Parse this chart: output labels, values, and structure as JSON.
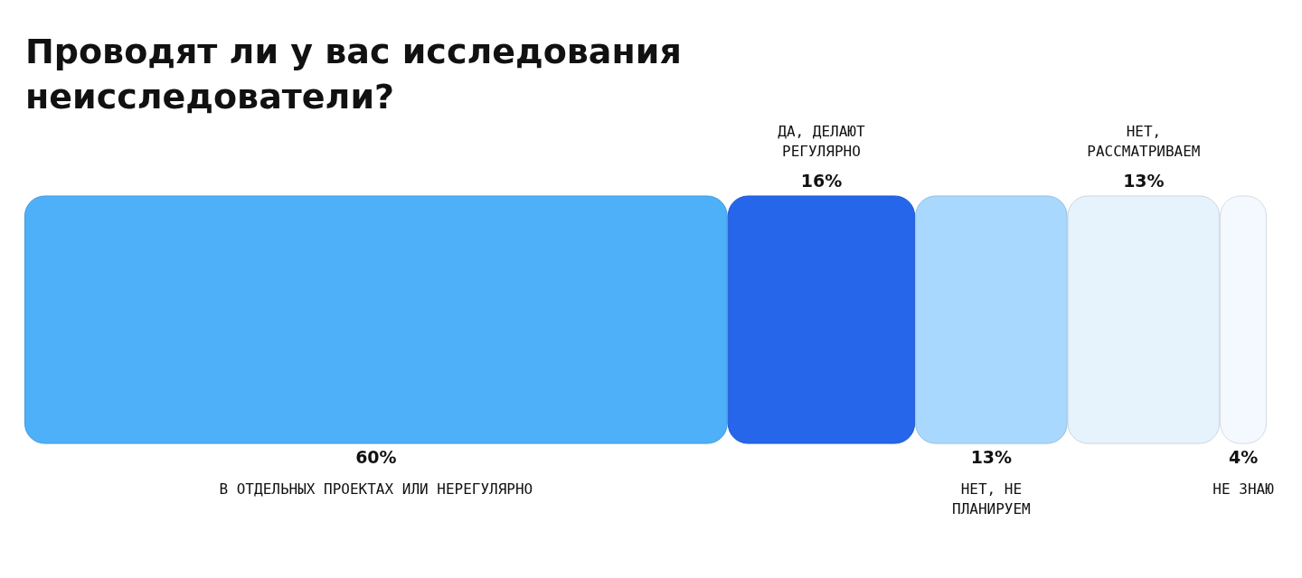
{
  "chart_data": {
    "type": "bar",
    "title": "Проводят ли у вас исследования неисследователи?",
    "stacked": true,
    "orientation": "horizontal",
    "categories": [
      null
    ],
    "series": [
      {
        "name": "В ОТДЕЛЬНЫХ ПРОЕКТАХ ИЛИ НЕРЕГУЛЯРНО",
        "color": "#4db0f8",
        "values": [
          60
        ],
        "value_labels": [
          "60%"
        ]
      },
      {
        "name": "ДА, ДЕЛАЮТ РЕГУЛЯРНО",
        "color": "#2566ea",
        "values": [
          16
        ],
        "value_labels": [
          "16%"
        ]
      },
      {
        "name": "НЕТ, НЕ ПЛАНИРУЕМ",
        "color": "#a8d8fd",
        "values": [
          13
        ],
        "value_labels": [
          "13%"
        ]
      },
      {
        "name": "НЕТ, РАССМАТРИВАЕМ",
        "color": "#e6f3fd",
        "values": [
          13
        ],
        "value_labels": [
          "13%"
        ]
      },
      {
        "name": "НЕ ЗНАЮ",
        "color": "#f3f9fe",
        "values": [
          4
        ],
        "value_labels": [
          "4%"
        ]
      }
    ]
  }
}
